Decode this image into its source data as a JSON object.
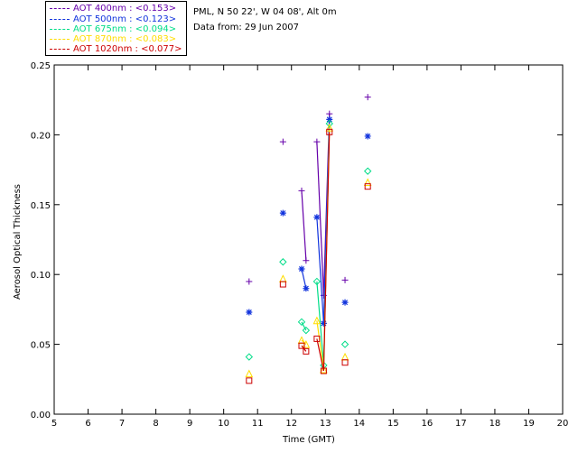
{
  "legend": [
    {
      "label": "AOT  400nm : <0.153>",
      "color": "#6600aa"
    },
    {
      "label": "AOT  500nm : <0.123>",
      "color": "#1133dd"
    },
    {
      "label": "AOT  675nm : <0.094>",
      "color": "#00dd88"
    },
    {
      "label": "AOT  870nm : <0.083>",
      "color": "#ffdd00"
    },
    {
      "label": "AOT 1020nm : <0.077>",
      "color": "#cc0000"
    }
  ],
  "info": {
    "location": "PML, N 50 22', W 04 08', Alt 0m",
    "date": "Data from: 29 Jun 2007"
  },
  "chart_data": {
    "type": "scatter",
    "xlabel": "Time (GMT)",
    "ylabel": "Aerosol Optical Thickness",
    "xlim": [
      5,
      20
    ],
    "ylim": [
      0,
      0.25
    ],
    "xticks": [
      5,
      6,
      7,
      8,
      9,
      10,
      11,
      12,
      13,
      14,
      15,
      16,
      17,
      18,
      19,
      20
    ],
    "yticks": [
      "0.00",
      "0.05",
      "0.10",
      "0.15",
      "0.20",
      "0.25"
    ],
    "grid": false,
    "legend_position": "top-left",
    "series": [
      {
        "name": "AOT  400nm : <0.153>",
        "color": "#6600aa",
        "marker": "plus",
        "x": [
          10.75,
          11.75,
          12.3,
          12.43,
          12.75,
          12.95,
          13.12,
          13.58,
          14.25
        ],
        "y": [
          0.095,
          0.195,
          0.16,
          0.11,
          0.195,
          0.085,
          0.215,
          0.096,
          0.227
        ],
        "lines": [
          [
            2,
            3
          ],
          [
            4,
            5
          ],
          [
            5,
            6
          ]
        ]
      },
      {
        "name": "AOT  500nm : <0.123>",
        "color": "#1133dd",
        "marker": "asterisk",
        "x": [
          10.75,
          11.75,
          12.3,
          12.43,
          12.75,
          12.95,
          13.12,
          13.58,
          14.25
        ],
        "y": [
          0.073,
          0.144,
          0.104,
          0.09,
          0.141,
          0.065,
          0.211,
          0.08,
          0.199
        ],
        "lines": [
          [
            2,
            3
          ],
          [
            4,
            5
          ],
          [
            5,
            6
          ]
        ]
      },
      {
        "name": "AOT  675nm : <0.094>",
        "color": "#00dd88",
        "marker": "diamond",
        "x": [
          10.75,
          11.75,
          12.3,
          12.43,
          12.75,
          12.95,
          13.12,
          13.58,
          14.25
        ],
        "y": [
          0.041,
          0.109,
          0.066,
          0.06,
          0.095,
          0.035,
          0.208,
          0.05,
          0.174
        ],
        "lines": [
          [
            2,
            3
          ],
          [
            4,
            5
          ],
          [
            5,
            6
          ]
        ]
      },
      {
        "name": "AOT  870nm : <0.083>",
        "color": "#ffdd00",
        "marker": "triangle",
        "x": [
          10.75,
          11.75,
          12.3,
          12.43,
          12.75,
          12.95,
          13.12,
          13.58,
          14.25
        ],
        "y": [
          0.029,
          0.097,
          0.053,
          0.05,
          0.067,
          0.032,
          0.205,
          0.041,
          0.166
        ],
        "lines": [
          [
            2,
            3
          ],
          [
            4,
            5
          ],
          [
            5,
            6
          ]
        ]
      },
      {
        "name": "AOT 1020nm : <0.077>",
        "color": "#cc0000",
        "marker": "square",
        "x": [
          10.75,
          11.75,
          12.3,
          12.43,
          12.75,
          12.95,
          13.12,
          13.58,
          14.25
        ],
        "y": [
          0.024,
          0.093,
          0.049,
          0.045,
          0.054,
          0.031,
          0.202,
          0.037,
          0.163
        ],
        "lines": [
          [
            2,
            3
          ],
          [
            4,
            5
          ],
          [
            5,
            6
          ]
        ]
      }
    ]
  }
}
